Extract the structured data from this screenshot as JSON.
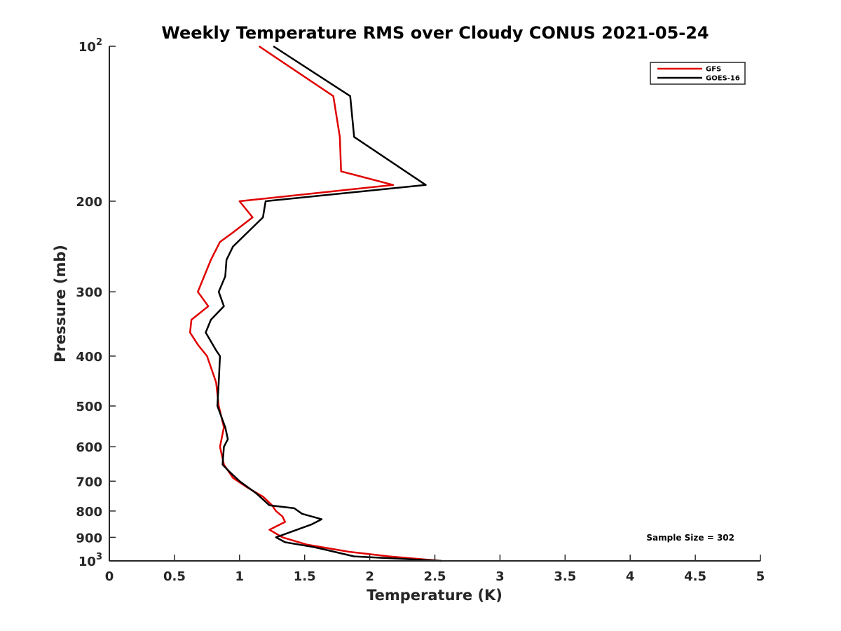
{
  "chart_data": {
    "type": "line",
    "title": "Weekly Temperature RMS over Cloudy CONUS 2021-05-24",
    "xlabel": "Temperature (K)",
    "ylabel": "Pressure (mb)",
    "xlim": [
      0,
      5
    ],
    "ylim": [
      100,
      1000
    ],
    "y_scale": "log",
    "y_reversed": true,
    "x_ticks": [
      0,
      0.5,
      1,
      1.5,
      2,
      2.5,
      3,
      3.5,
      4,
      4.5,
      5
    ],
    "x_tick_labels": [
      "0",
      "0.5",
      "1",
      "1.5",
      "2",
      "2.5",
      "3",
      "3.5",
      "4",
      "4.5",
      "5"
    ],
    "y_ticks": [
      100,
      200,
      300,
      400,
      500,
      600,
      700,
      800,
      900,
      1000
    ],
    "y_tick_labels": [
      {
        "base": "10",
        "exp": "2"
      },
      {
        "base": "200",
        "exp": ""
      },
      {
        "base": "300",
        "exp": ""
      },
      {
        "base": "400",
        "exp": ""
      },
      {
        "base": "500",
        "exp": ""
      },
      {
        "base": "600",
        "exp": ""
      },
      {
        "base": "700",
        "exp": ""
      },
      {
        "base": "800",
        "exp": ""
      },
      {
        "base": "900",
        "exp": ""
      },
      {
        "base": "10",
        "exp": "3"
      }
    ],
    "grid": false,
    "legend_position": "top-right",
    "series": [
      {
        "name": "GFS",
        "color": "#e00000",
        "points": [
          [
            1.15,
            100
          ],
          [
            1.72,
            125
          ],
          [
            1.77,
            150
          ],
          [
            1.78,
            175
          ],
          [
            2.18,
            186
          ],
          [
            1.0,
            200
          ],
          [
            1.1,
            215
          ],
          [
            0.95,
            230
          ],
          [
            0.85,
            240
          ],
          [
            0.78,
            260
          ],
          [
            0.68,
            300
          ],
          [
            0.76,
            320
          ],
          [
            0.63,
            340
          ],
          [
            0.62,
            360
          ],
          [
            0.68,
            380
          ],
          [
            0.75,
            400
          ],
          [
            0.82,
            450
          ],
          [
            0.84,
            500
          ],
          [
            0.88,
            550
          ],
          [
            0.85,
            600
          ],
          [
            0.88,
            650
          ],
          [
            0.95,
            690
          ],
          [
            1.06,
            720
          ],
          [
            1.18,
            750
          ],
          [
            1.25,
            780
          ],
          [
            1.28,
            800
          ],
          [
            1.33,
            820
          ],
          [
            1.35,
            840
          ],
          [
            1.23,
            870
          ],
          [
            1.33,
            900
          ],
          [
            1.52,
            930
          ],
          [
            1.84,
            960
          ],
          [
            2.15,
            980
          ],
          [
            2.55,
            1000
          ]
        ]
      },
      {
        "name": "GOES-16",
        "color": "#000000",
        "points": [
          [
            1.26,
            100
          ],
          [
            1.85,
            125
          ],
          [
            1.88,
            150
          ],
          [
            2.43,
            186
          ],
          [
            1.2,
            200
          ],
          [
            1.18,
            215
          ],
          [
            0.95,
            245
          ],
          [
            0.9,
            260
          ],
          [
            0.89,
            280
          ],
          [
            0.84,
            300
          ],
          [
            0.88,
            320
          ],
          [
            0.78,
            340
          ],
          [
            0.74,
            360
          ],
          [
            0.82,
            390
          ],
          [
            0.85,
            400
          ],
          [
            0.84,
            450
          ],
          [
            0.83,
            500
          ],
          [
            0.89,
            550
          ],
          [
            0.91,
            580
          ],
          [
            0.88,
            600
          ],
          [
            0.87,
            650
          ],
          [
            0.92,
            670
          ],
          [
            1.0,
            700
          ],
          [
            1.13,
            740
          ],
          [
            1.23,
            780
          ],
          [
            1.42,
            790
          ],
          [
            1.48,
            810
          ],
          [
            1.63,
            830
          ],
          [
            1.55,
            850
          ],
          [
            1.28,
            900
          ],
          [
            1.35,
            920
          ],
          [
            1.57,
            940
          ],
          [
            1.65,
            950
          ],
          [
            1.88,
            980
          ],
          [
            2.55,
            1000
          ]
        ]
      }
    ],
    "annotation": "Sample Size = 302"
  }
}
